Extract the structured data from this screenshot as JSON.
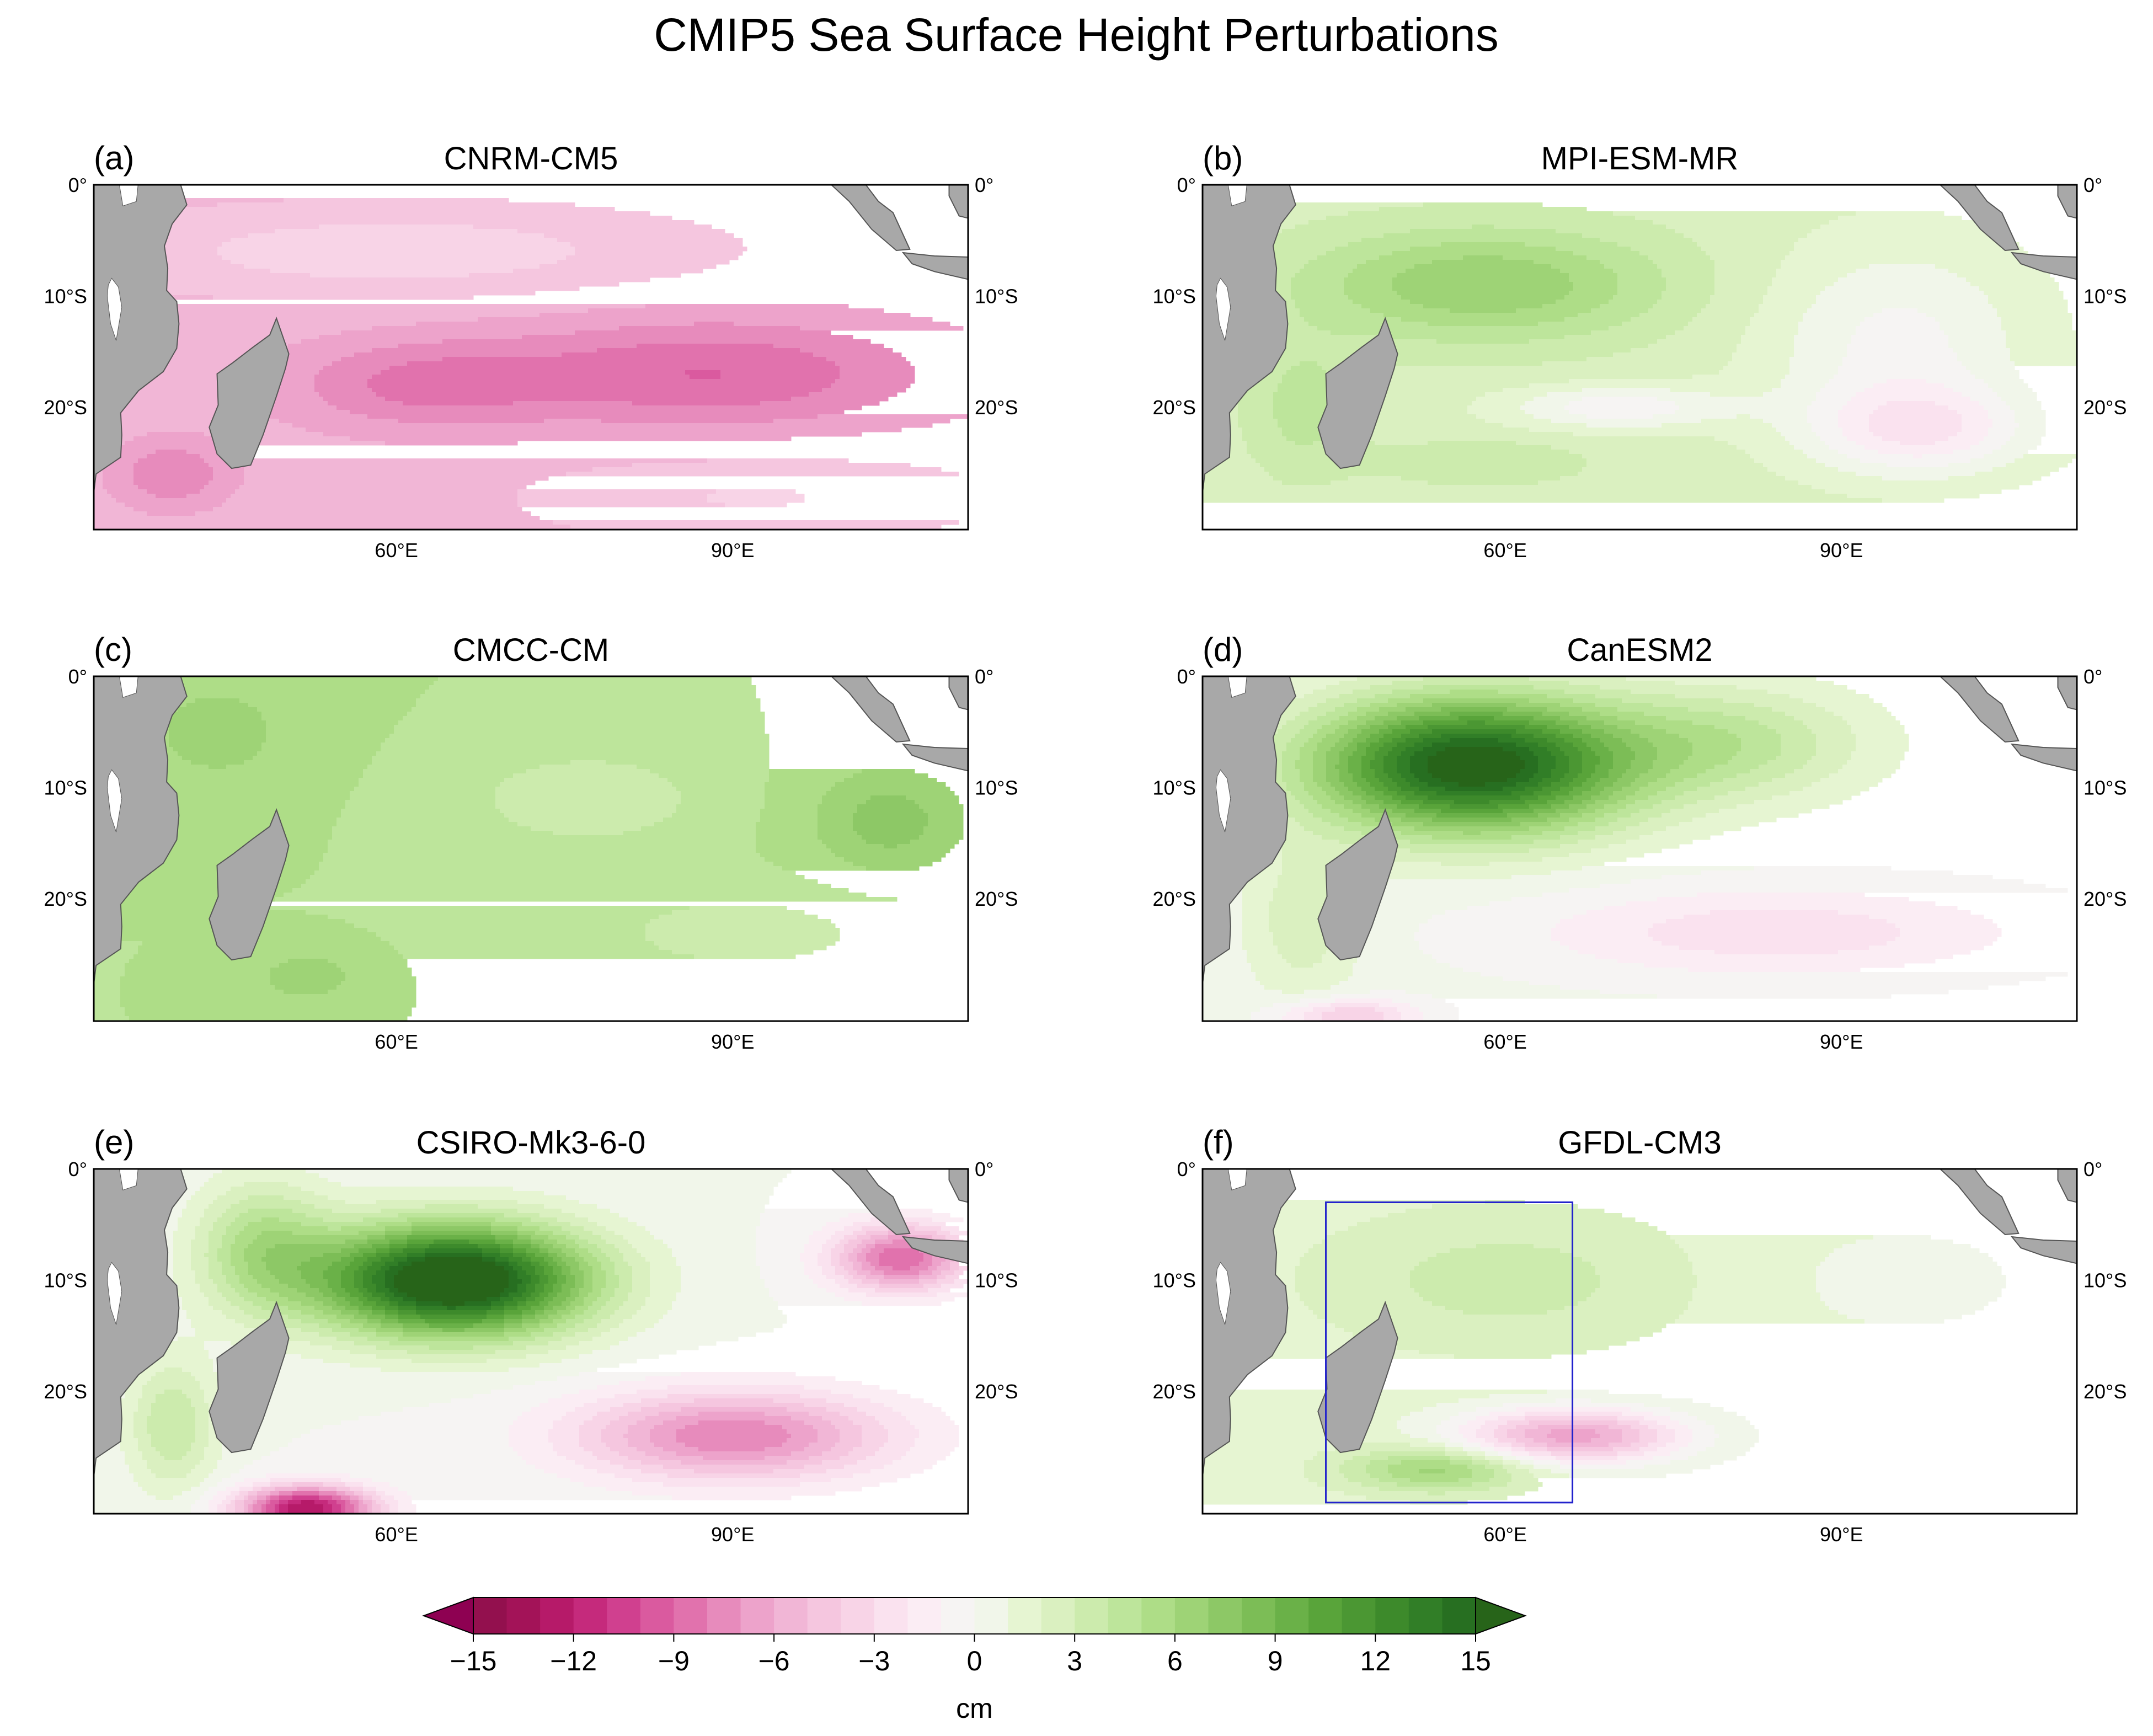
{
  "title": "CMIP5 Sea Surface Height Perturbations",
  "colors": {
    "land": "#a8a8a8",
    "coast": "#555555",
    "frame": "#000000",
    "box": "#2222cc"
  },
  "colorbar": {
    "levels": [
      -15,
      -14,
      -13,
      -12,
      -11,
      -10,
      -9,
      -8,
      -7,
      -6,
      -5,
      -4,
      -3,
      -2,
      -1,
      0,
      1,
      2,
      3,
      4,
      5,
      6,
      7,
      8,
      9,
      10,
      11,
      12,
      13,
      14,
      15
    ],
    "colors": [
      "#93104e",
      "#a31358",
      "#b61a69",
      "#c52a7c",
      "#d0408f",
      "#da5a9f",
      "#e172ad",
      "#e78bbc",
      "#eda3cb",
      "#f1b6d6",
      "#f5c6df",
      "#f8d4e7",
      "#fae2ef",
      "#fbedf4",
      "#f6f4f3",
      "#f1f6ea",
      "#e6f5d2",
      "#daf0c0",
      "#ccebad",
      "#bde59b",
      "#aedd87",
      "#9ed376",
      "#8dc866",
      "#7cbd56",
      "#6ab148",
      "#59a43a",
      "#4b9733",
      "#3d8a2b",
      "#317e27",
      "#276f21"
    ],
    "under": "#8e0152",
    "over": "#276419",
    "ticks": [
      "−15",
      "−12",
      "−9",
      "−6",
      "−3",
      "0",
      "3",
      "6",
      "9",
      "12",
      "15"
    ],
    "label": "cm"
  },
  "axes": {
    "lat_labels": [
      "0°",
      "10°S",
      "20°S"
    ],
    "lon_labels": [
      "60°E",
      "90°E"
    ]
  },
  "chart_data": {
    "type": "heatmap",
    "title": "CMIP5 Sea Surface Height Perturbations",
    "units": "cm",
    "value_range": [
      -15,
      15
    ],
    "lon_range": [
      33,
      111
    ],
    "lat_range": [
      -31,
      0
    ],
    "panels": [
      {
        "label": "(a)",
        "model": "CNRM-CM5",
        "base": -5.5,
        "features": [
          {
            "lon": 88,
            "lat": -17,
            "rlon": 20,
            "rlat": 5,
            "amp": -3.5
          },
          {
            "lon": 62,
            "lat": -18,
            "rlon": 12,
            "rlat": 4,
            "amp": -2.5
          },
          {
            "lon": 40,
            "lat": -26,
            "rlon": 5,
            "rlat": 3,
            "amp": -2.5
          },
          {
            "lon": 60,
            "lat": -6,
            "rlon": 26,
            "rlat": 4,
            "amp": 2.2
          },
          {
            "lon": 92,
            "lat": -28,
            "rlon": 20,
            "rlat": 4,
            "amp": 1.6
          }
        ]
      },
      {
        "label": "(b)",
        "model": "MPI-ESM-MR",
        "base": 2.5,
        "features": [
          {
            "lon": 58,
            "lat": -9,
            "rlon": 16,
            "rlat": 5,
            "amp": 4.5
          },
          {
            "lon": 42,
            "lat": -20,
            "rlon": 5,
            "rlat": 6,
            "amp": 2.0
          },
          {
            "lon": 58,
            "lat": -25,
            "rlon": 9,
            "rlat": 2,
            "amp": 1.5
          },
          {
            "lon": 95,
            "lat": -14,
            "rlon": 12,
            "rlat": 9,
            "amp": -2.8
          },
          {
            "lon": 97,
            "lat": -22,
            "rlon": 10,
            "rlat": 4,
            "amp": -4.0
          },
          {
            "lon": 70,
            "lat": -20,
            "rlon": 10,
            "rlat": 2,
            "amp": -3.2
          }
        ]
      },
      {
        "label": "(c)",
        "model": "CMCC-CM",
        "base": 5.0,
        "features": [
          {
            "lon": 77,
            "lat": -11,
            "rlon": 10,
            "rlat": 4,
            "amp": -2.0
          },
          {
            "lon": 104,
            "lat": -13,
            "rlon": 7,
            "rlat": 5,
            "amp": 2.5
          },
          {
            "lon": 44,
            "lat": -5,
            "rlon": 7,
            "rlat": 5,
            "amp": 1.5
          },
          {
            "lon": 52,
            "lat": -27,
            "rlon": 4,
            "rlat": 2,
            "amp": 2.0
          },
          {
            "lon": 91,
            "lat": -23,
            "rlon": 14,
            "rlat": 4,
            "amp": -1.5
          }
        ]
      },
      {
        "label": "(d)",
        "model": "CanESM2",
        "base": 0.3,
        "features": [
          {
            "lon": 57,
            "lat": -8,
            "rlon": 14,
            "rlat": 6,
            "amp": 16
          },
          {
            "lon": 80,
            "lat": -6,
            "rlon": 12,
            "rlat": 5,
            "amp": 4
          },
          {
            "lon": 84,
            "lat": -23,
            "rlon": 22,
            "rlat": 4,
            "amp": -3.0
          },
          {
            "lon": 46,
            "lat": -30.5,
            "rlon": 6,
            "rlat": 1.5,
            "amp": -4.5
          },
          {
            "lon": 42,
            "lat": -22,
            "rlon": 5,
            "rlat": 7,
            "amp": 2.5
          }
        ]
      },
      {
        "label": "(e)",
        "model": "CSIRO-Mk3-6-0",
        "base": 0,
        "features": [
          {
            "lon": 65,
            "lat": -10,
            "rlon": 12,
            "rlat": 5,
            "amp": 18
          },
          {
            "lon": 48,
            "lat": -7,
            "rlon": 6,
            "rlat": 6,
            "amp": 5
          },
          {
            "lon": 90,
            "lat": -24,
            "rlon": 14,
            "rlat": 4,
            "amp": -8
          },
          {
            "lon": 52,
            "lat": -30.5,
            "rlon": 6,
            "rlat": 2,
            "amp": -13
          },
          {
            "lon": 105,
            "lat": -8,
            "rlon": 6,
            "rlat": 3,
            "amp": -9
          },
          {
            "lon": 40,
            "lat": -23,
            "rlon": 4,
            "rlat": 6,
            "amp": 4
          }
        ]
      },
      {
        "label": "(f)",
        "model": "GFDL-CM3",
        "base": 1.5,
        "features": [
          {
            "lon": 60,
            "lat": -10,
            "rlon": 16,
            "rlat": 6,
            "amp": 2.0
          },
          {
            "lon": 66,
            "lat": -24,
            "rlon": 10,
            "rlat": 2.5,
            "amp": -8
          },
          {
            "lon": 54,
            "lat": -27,
            "rlon": 8,
            "rlat": 2,
            "amp": 5
          },
          {
            "lon": 95,
            "lat": -10,
            "rlon": 14,
            "rlat": 6,
            "amp": -0.8
          }
        ],
        "box": {
          "lon_min": 44,
          "lon_max": 66,
          "lat_min": -30,
          "lat_max": -3
        }
      }
    ]
  }
}
